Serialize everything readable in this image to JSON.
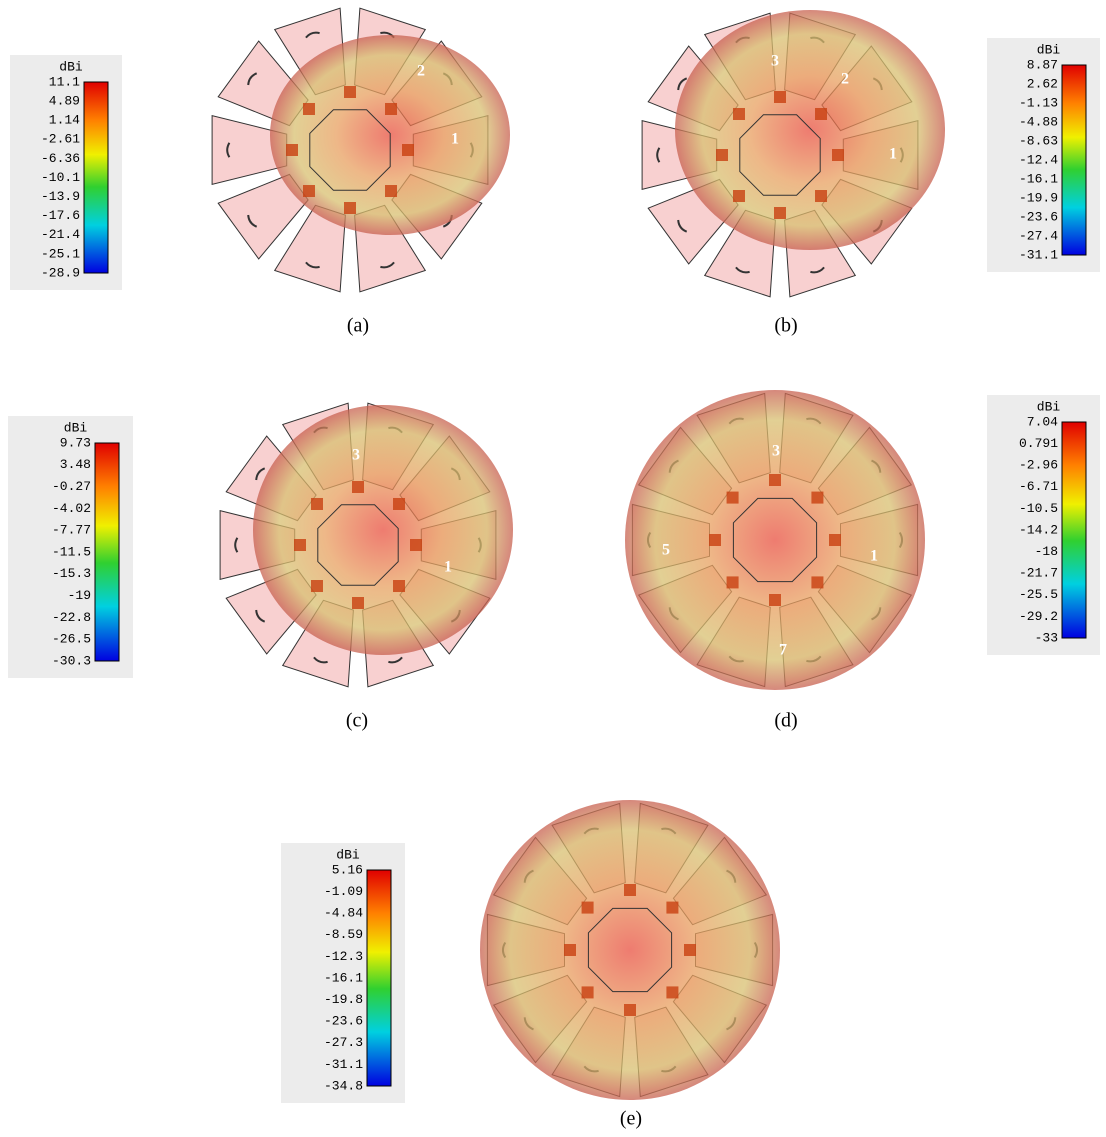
{
  "panels": [
    {
      "caption": "(a)",
      "colorbar": {
        "unit": "dBi",
        "ticks": [
          "11.1",
          "4.89",
          "1.14",
          "-2.61",
          "-6.36",
          "-10.1",
          "-13.9",
          "-17.6",
          "-21.4",
          "-25.1",
          "-28.9"
        ]
      },
      "port_labels": [
        "2",
        "1"
      ]
    },
    {
      "caption": "(b)",
      "colorbar": {
        "unit": "dBi",
        "ticks": [
          "8.87",
          "2.62",
          "-1.13",
          "-4.88",
          "-8.63",
          "-12.4",
          "-16.1",
          "-19.9",
          "-23.6",
          "-27.4",
          "-31.1"
        ]
      },
      "port_labels": [
        "3",
        "2",
        "1"
      ]
    },
    {
      "caption": "(c)",
      "colorbar": {
        "unit": "dBi",
        "ticks": [
          "9.73",
          "3.48",
          "-0.27",
          "-4.02",
          "-7.77",
          "-11.5",
          "-15.3",
          "-19",
          "-22.8",
          "-26.5",
          "-30.3"
        ]
      },
      "port_labels": [
        "3",
        "1"
      ]
    },
    {
      "caption": "(d)",
      "colorbar": {
        "unit": "dBi",
        "ticks": [
          "7.04",
          "0.791",
          "-2.96",
          "-6.71",
          "-10.5",
          "-14.2",
          "-18",
          "-21.7",
          "-25.5",
          "-29.2",
          "-33"
        ]
      },
      "port_labels": [
        "3",
        "5",
        "1",
        "7"
      ]
    },
    {
      "caption": "(e)",
      "colorbar": {
        "unit": "dBi",
        "ticks": [
          "5.16",
          "-1.09",
          "-4.84",
          "-8.59",
          "-12.3",
          "-16.1",
          "-19.8",
          "-23.6",
          "-27.3",
          "-31.1",
          "-34.8"
        ]
      }
    }
  ]
}
